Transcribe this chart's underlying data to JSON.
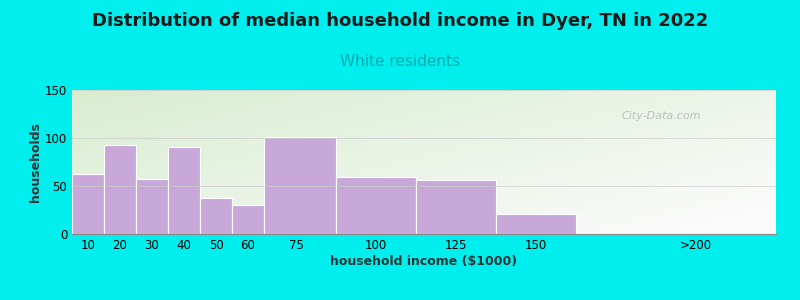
{
  "title": "Distribution of median household income in Dyer, TN in 2022",
  "subtitle": "White residents",
  "xlabel": "household income ($1000)",
  "ylabel": "households",
  "background_outer": "#00EEEE",
  "bar_color": "#C8A8D8",
  "bar_edge_color": "#FFFFFF",
  "title_fontsize": 13,
  "subtitle_fontsize": 11,
  "subtitle_color": "#00AAAA",
  "axis_label_fontsize": 9,
  "tick_fontsize": 8.5,
  "ylim": [
    0,
    150
  ],
  "yticks": [
    0,
    50,
    100,
    150
  ],
  "categories": [
    "10",
    "20",
    "30",
    "40",
    "50",
    "60",
    "75",
    "100",
    "125",
    "150",
    ">200"
  ],
  "values": [
    63,
    93,
    57,
    91,
    37,
    30,
    101,
    59,
    56,
    21,
    0
  ],
  "bar_lefts": [
    5,
    15,
    25,
    35,
    45,
    55,
    65,
    87.5,
    112.5,
    137.5,
    175
  ],
  "bar_widths": [
    10,
    10,
    10,
    10,
    10,
    10,
    22.5,
    25,
    25,
    25,
    50
  ],
  "bar_tick_pos": [
    10,
    20,
    30,
    40,
    50,
    60,
    75,
    100,
    125,
    150,
    200
  ],
  "watermark": "City-Data.com",
  "plot_bg_color_topleft": "#D8EDD0",
  "plot_bg_color_right": "#F5F5F5",
  "plot_bg_color_bottom": "#FAFAFA",
  "xlim": [
    5,
    225
  ],
  "title_color": "#1A1A1A"
}
